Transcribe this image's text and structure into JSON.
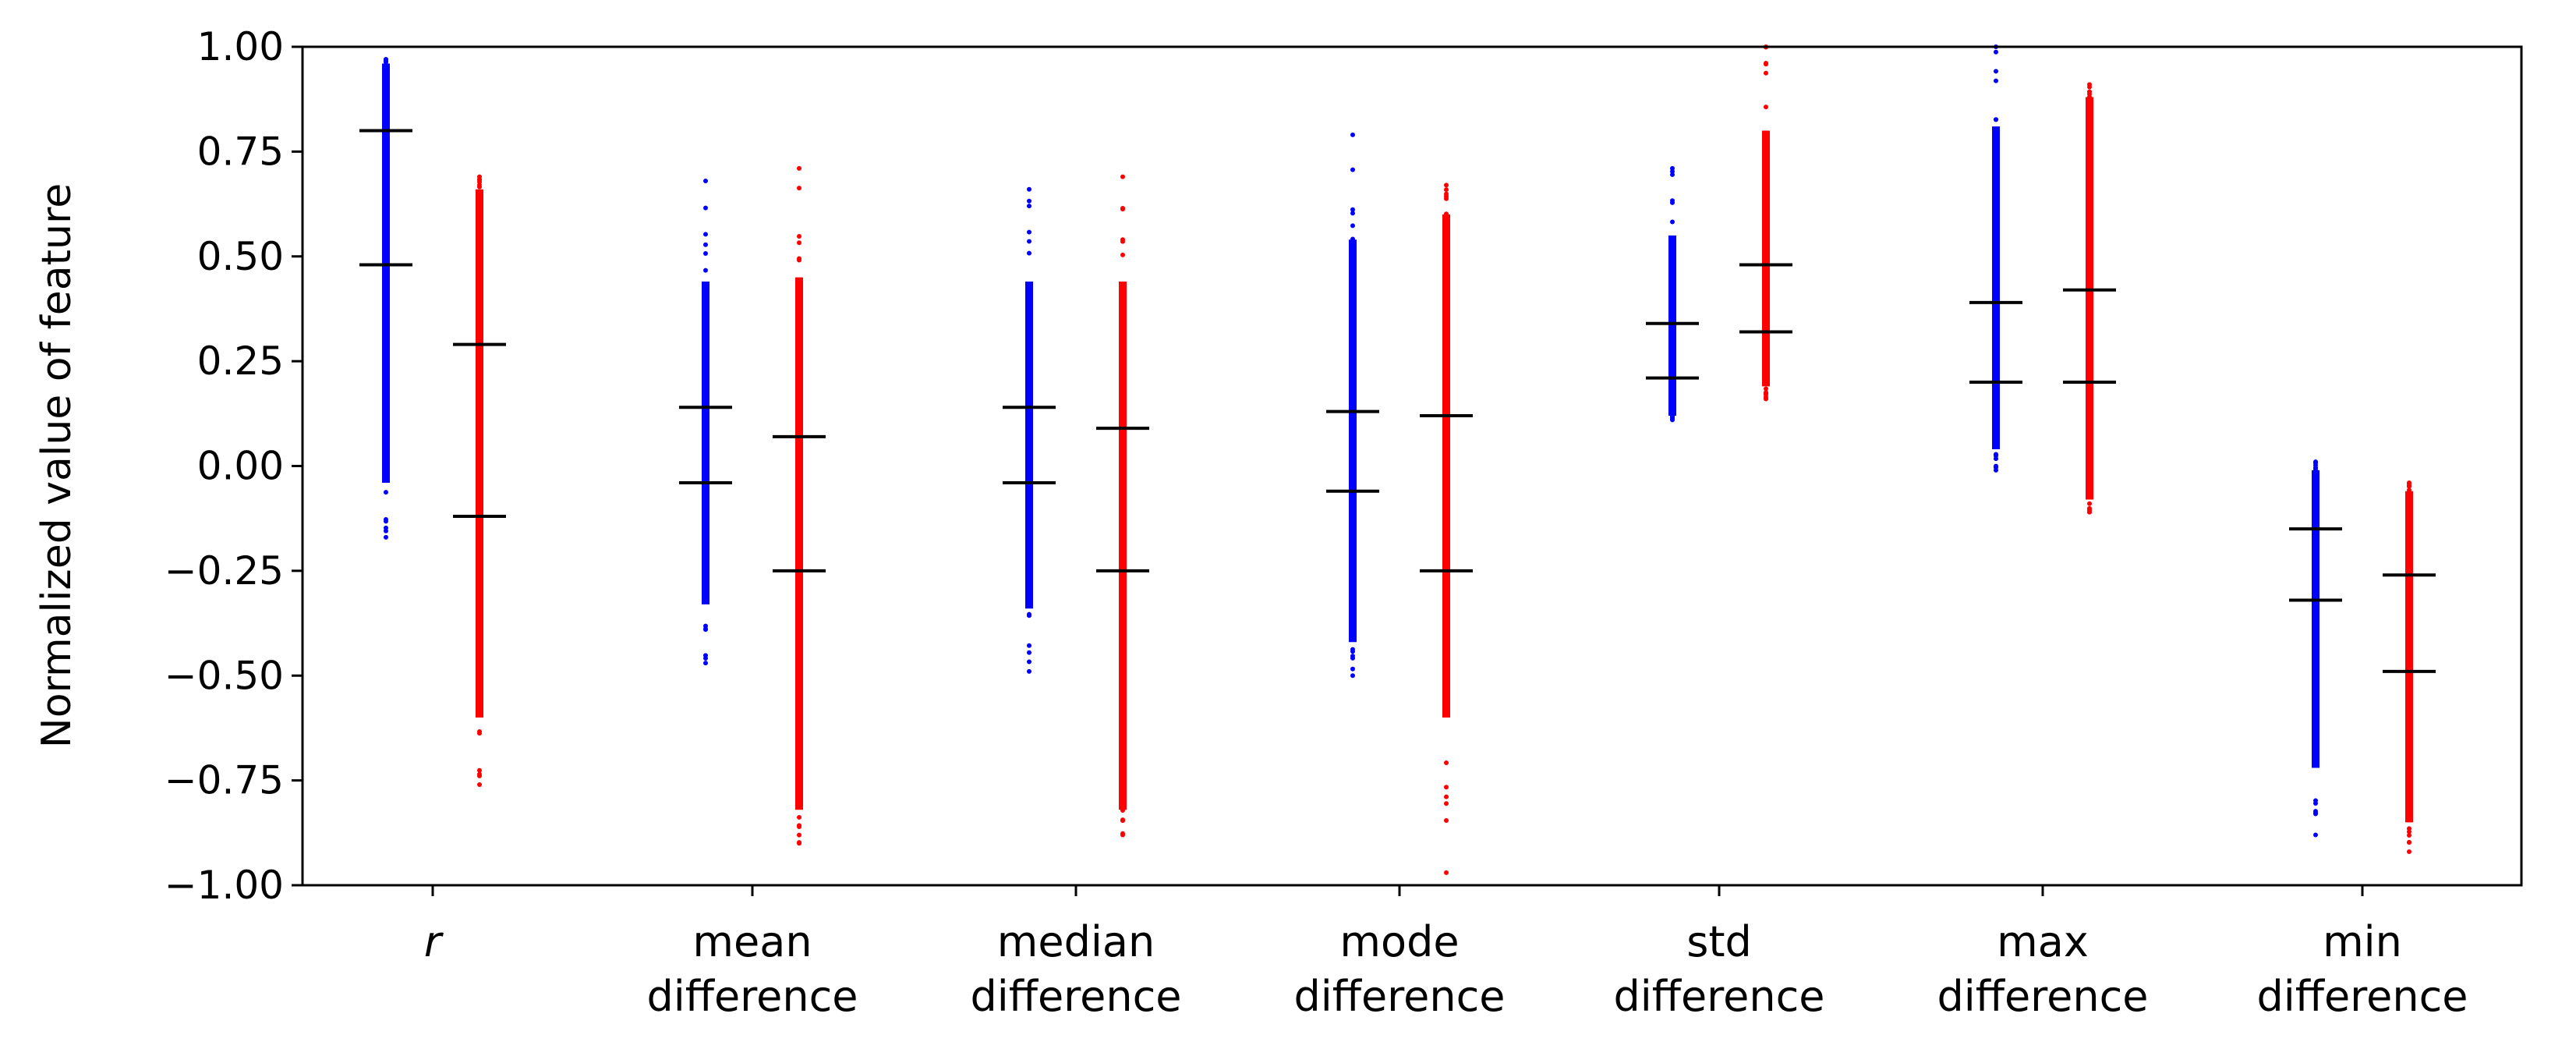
{
  "chart_data": {
    "type": "strip",
    "title": "",
    "xlabel": "",
    "ylabel": "Normalized value of feature",
    "ylim": [
      -1.0,
      1.0
    ],
    "yticks": [
      "1.00",
      "0.75",
      "0.50",
      "0.25",
      "0.00",
      "−0.25",
      "−0.50",
      "−0.75",
      "−1.00"
    ],
    "ytick_values": [
      1.0,
      0.75,
      0.5,
      0.25,
      0.0,
      -0.25,
      -0.5,
      -0.75,
      -1.0
    ],
    "grid": false,
    "colors": {
      "blue": "#0000ff",
      "red": "#ff0000",
      "marker": "#000000"
    },
    "categories": [
      {
        "label_line1": "r",
        "label_line2": "",
        "italic": true,
        "blue": {
          "min": -0.17,
          "max": 0.97,
          "dense_min": -0.04,
          "dense_max": 0.96,
          "p_low": 0.48,
          "p_high": 0.8
        },
        "red": {
          "min": -0.76,
          "max": 0.69,
          "dense_min": -0.6,
          "dense_max": 0.66,
          "p_low": -0.12,
          "p_high": 0.29
        }
      },
      {
        "label_line1": "mean",
        "label_line2": "difference",
        "italic": false,
        "blue": {
          "min": -0.47,
          "max": 0.68,
          "dense_min": -0.33,
          "dense_max": 0.44,
          "p_low": -0.04,
          "p_high": 0.14
        },
        "red": {
          "min": -0.9,
          "max": 0.71,
          "dense_min": -0.82,
          "dense_max": 0.45,
          "p_low": -0.25,
          "p_high": 0.07
        }
      },
      {
        "label_line1": "median",
        "label_line2": "difference",
        "italic": false,
        "blue": {
          "min": -0.49,
          "max": 0.66,
          "dense_min": -0.34,
          "dense_max": 0.44,
          "p_low": -0.04,
          "p_high": 0.14
        },
        "red": {
          "min": -0.88,
          "max": 0.69,
          "dense_min": -0.82,
          "dense_max": 0.44,
          "p_low": -0.25,
          "p_high": 0.09
        }
      },
      {
        "label_line1": "mode",
        "label_line2": "difference",
        "italic": false,
        "blue": {
          "min": -0.5,
          "max": 0.79,
          "dense_min": -0.42,
          "dense_max": 0.54,
          "p_low": -0.06,
          "p_high": 0.13
        },
        "red": {
          "min": -0.97,
          "max": 0.67,
          "dense_min": -0.6,
          "dense_max": 0.6,
          "p_low": -0.25,
          "p_high": 0.12
        }
      },
      {
        "label_line1": "std",
        "label_line2": "difference",
        "italic": false,
        "blue": {
          "min": 0.11,
          "max": 0.71,
          "dense_min": 0.12,
          "dense_max": 0.55,
          "p_low": 0.21,
          "p_high": 0.34
        },
        "red": {
          "min": 0.16,
          "max": 1.0,
          "dense_min": 0.19,
          "dense_max": 0.8,
          "p_low": 0.32,
          "p_high": 0.48
        }
      },
      {
        "label_line1": "max",
        "label_line2": "difference",
        "italic": false,
        "blue": {
          "min": -0.01,
          "max": 1.0,
          "dense_min": 0.04,
          "dense_max": 0.81,
          "p_low": 0.2,
          "p_high": 0.39
        },
        "red": {
          "min": -0.11,
          "max": 0.91,
          "dense_min": -0.08,
          "dense_max": 0.88,
          "p_low": 0.2,
          "p_high": 0.42
        }
      },
      {
        "label_line1": "min",
        "label_line2": "difference",
        "italic": false,
        "blue": {
          "min": -0.88,
          "max": 0.01,
          "dense_min": -0.72,
          "dense_max": -0.01,
          "p_low": -0.32,
          "p_high": -0.15
        },
        "red": {
          "min": -0.92,
          "max": -0.04,
          "dense_min": -0.85,
          "dense_max": -0.06,
          "p_low": -0.49,
          "p_high": -0.26
        }
      }
    ]
  }
}
